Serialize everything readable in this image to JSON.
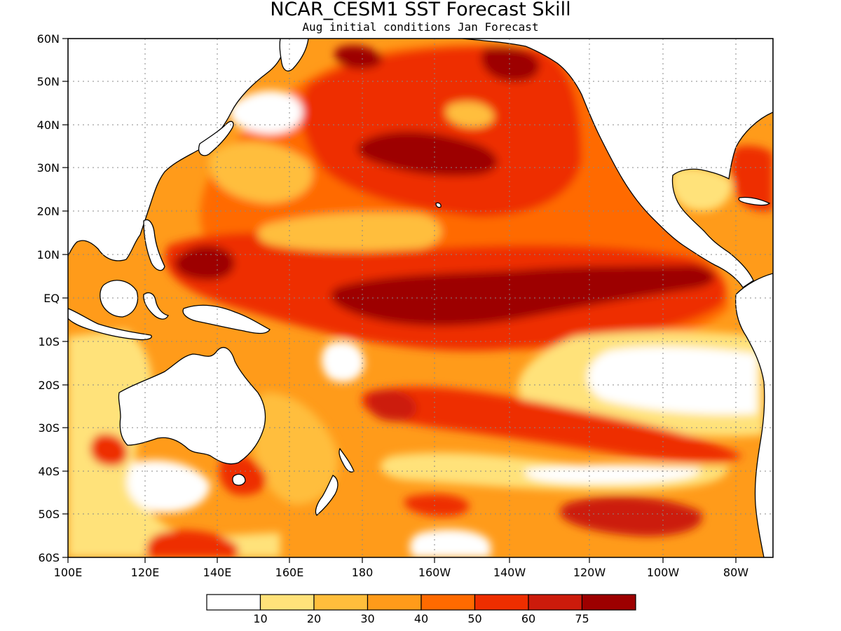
{
  "title": "NCAR_CESM1 SST Forecast Skill",
  "subtitle": "Aug initial conditions  Jan Forecast",
  "map": {
    "region": "Pacific Ocean",
    "lon_range": [
      "100E",
      "70W"
    ],
    "lat_range": [
      "60S",
      "60N"
    ],
    "grid": "dotted",
    "lon_ticks": [
      "100E",
      "120E",
      "140E",
      "160E",
      "180",
      "160W",
      "140W",
      "120W",
      "100W",
      "80W"
    ],
    "lat_ticks": [
      "60N",
      "50N",
      "40N",
      "30N",
      "20N",
      "10N",
      "EQ",
      "10S",
      "20S",
      "30S",
      "40S",
      "50S",
      "60S"
    ]
  },
  "colorbar": {
    "colors": [
      "#ffffff",
      "#ffe27a",
      "#ffbe3c",
      "#ff9b1a",
      "#ff6a00",
      "#ee2e00",
      "#cc1b0b",
      "#9d0000"
    ],
    "labels": [
      "10",
      "20",
      "30",
      "40",
      "50",
      "60",
      "75"
    ]
  }
}
